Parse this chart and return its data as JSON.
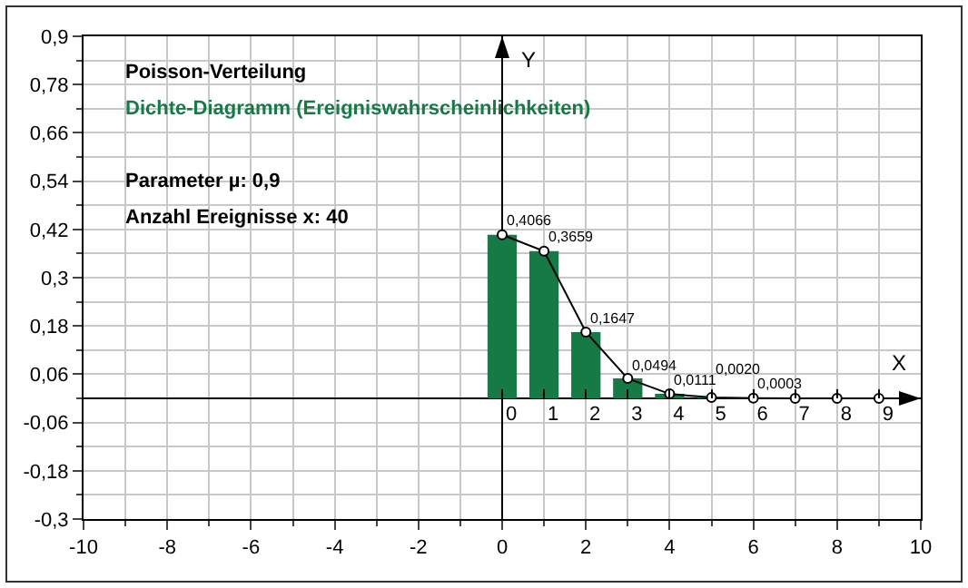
{
  "chart_data": {
    "type": "bar",
    "title": "Poisson-Verteilung",
    "subtitle": "Dichte-Diagramm (Ereigniswahrscheinlichkeiten)",
    "annotations": [
      "Parameter µ: 0,9",
      "Anzahl Ereignisse x: 40"
    ],
    "x": [
      0,
      1,
      2,
      3,
      4,
      5,
      6,
      7,
      8,
      9
    ],
    "series": [
      {
        "color": "#157a45",
        "values": [
          0.4066,
          0.3659,
          0.1647,
          0.0494,
          0.0111,
          0.002,
          0.0003,
          0,
          0,
          0
        ],
        "value_labels": [
          "0,4066",
          "0,3659",
          "0,1647",
          "0,0494",
          "0,0111",
          "0,0020",
          "0,0003",
          null,
          null,
          null
        ]
      },
      {
        "type": "line",
        "color": "#000000",
        "values": [
          0.4066,
          0.3659,
          0.1647,
          0.0494,
          0.0111,
          0.002,
          0.0003,
          0,
          0,
          0
        ]
      }
    ],
    "marker": "circle",
    "line_style": "solid",
    "grid": true,
    "legend": false,
    "xlim": [
      -10,
      10
    ],
    "xticks": [
      -10,
      -8,
      -6,
      -4,
      -2,
      0,
      2,
      4,
      6,
      8,
      10
    ],
    "ylim": [
      -0.3,
      0.9
    ],
    "yticks": [
      {
        "value": -0.3,
        "label": "-0,3"
      },
      {
        "value": -0.18,
        "label": "-0,18"
      },
      {
        "value": -0.06,
        "label": "-0,06"
      },
      {
        "value": 0.06,
        "label": "0,06"
      },
      {
        "value": 0.18,
        "label": "0,18"
      },
      {
        "value": 0.3,
        "label": "0,3"
      },
      {
        "value": 0.42,
        "label": "0,42"
      },
      {
        "value": 0.54,
        "label": "0,54"
      },
      {
        "value": 0.66,
        "label": "0,66"
      },
      {
        "value": 0.78,
        "label": "0,78"
      },
      {
        "value": 0.9,
        "label": "0,9"
      }
    ],
    "x2lim": [
      -10,
      10
    ],
    "x2ticks": [
      0,
      1,
      2,
      3,
      4,
      5,
      6,
      7,
      8,
      9
    ],
    "x2label": "X",
    "ylabel": "Y"
  }
}
